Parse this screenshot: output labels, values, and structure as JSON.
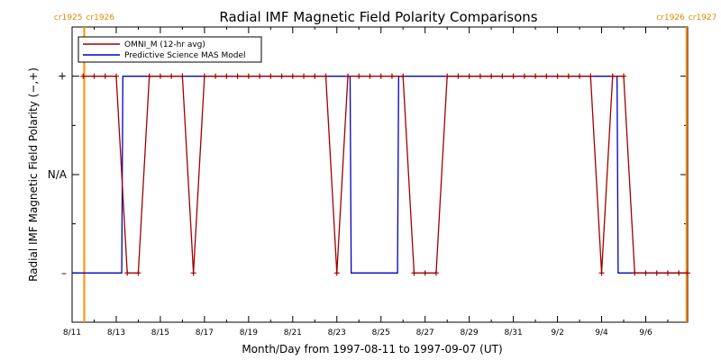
{
  "colors": {
    "omni": "#a00000",
    "mas": "#0000c0",
    "cr_boundary": "#ff8c00",
    "cr_label": "#e08a00",
    "axis": "#000000"
  },
  "chart_data": {
    "type": "line",
    "title": "Radial IMF Magnetic Field Polarity Comparisons",
    "xlabel": "Month/Day from 1997-08-11 to 1997-09-07 (UT)",
    "ylabel": "Radial IMF Magnetic Field Polarity (−,+)",
    "x_unit": "days from 1997-08-11",
    "xlim": [
      0,
      27.9
    ],
    "ylim": [
      -1.5,
      1.5
    ],
    "x_ticks": [
      {
        "x": 0,
        "label": "8/11"
      },
      {
        "x": 2,
        "label": "8/13"
      },
      {
        "x": 4,
        "label": "8/15"
      },
      {
        "x": 6,
        "label": "8/17"
      },
      {
        "x": 8,
        "label": "8/19"
      },
      {
        "x": 10,
        "label": "8/21"
      },
      {
        "x": 12,
        "label": "8/23"
      },
      {
        "x": 14,
        "label": "8/25"
      },
      {
        "x": 16,
        "label": "8/27"
      },
      {
        "x": 18,
        "label": "8/29"
      },
      {
        "x": 20,
        "label": "8/31"
      },
      {
        "x": 22,
        "label": "9/2"
      },
      {
        "x": 24,
        "label": "9/4"
      },
      {
        "x": 26,
        "label": "9/6"
      }
    ],
    "y_ticks": [
      {
        "y": 1,
        "label": "+"
      },
      {
        "y": 0,
        "label": "N/A"
      },
      {
        "y": -1,
        "label": "–"
      }
    ],
    "legend": {
      "position": "top-left"
    },
    "cr_boundaries": [
      {
        "x": 0.55,
        "left_label": "cr1925",
        "right_label": "cr1926"
      },
      {
        "x": 27.85,
        "left_label": "cr1926",
        "right_label": "cr1927"
      }
    ],
    "series": [
      {
        "name": "OMNI_M (12-hr avg)",
        "style": "line+plus",
        "x": [
          0.5,
          1.0,
          1.5,
          2.0,
          2.5,
          3.0,
          3.5,
          4.0,
          4.5,
          5.0,
          5.5,
          6.0,
          6.5,
          7.0,
          7.5,
          8.0,
          8.5,
          9.0,
          9.5,
          10.0,
          10.5,
          11.0,
          11.5,
          12.0,
          12.5,
          13.0,
          13.5,
          14.0,
          14.5,
          15.0,
          15.5,
          16.0,
          16.5,
          17.0,
          17.5,
          18.0,
          18.5,
          19.0,
          19.5,
          20.0,
          20.5,
          21.0,
          21.5,
          22.0,
          22.5,
          23.0,
          23.5,
          24.0,
          24.5,
          25.0,
          25.5,
          26.0,
          26.5,
          27.0,
          27.5,
          27.9
        ],
        "y": [
          1,
          1,
          1,
          1,
          -1,
          -1,
          1,
          1,
          1,
          1,
          -1,
          1,
          1,
          1,
          1,
          1,
          1,
          1,
          1,
          1,
          1,
          1,
          1,
          -1,
          1,
          1,
          1,
          1,
          1,
          1,
          -1,
          -1,
          -1,
          1,
          1,
          1,
          1,
          1,
          1,
          1,
          1,
          1,
          1,
          1,
          1,
          1,
          1,
          -1,
          1,
          1,
          -1,
          -1,
          -1,
          -1,
          -1,
          -1
        ]
      },
      {
        "name": "Predictive Science MAS Model",
        "style": "step",
        "x": [
          0,
          2.25,
          2.3,
          12.6,
          12.65,
          14.75,
          14.8,
          20.0,
          24.7,
          24.75,
          27.9
        ],
        "y": [
          -1,
          -1,
          1,
          1,
          -1,
          -1,
          1,
          1,
          1,
          -1,
          -1
        ]
      }
    ]
  }
}
